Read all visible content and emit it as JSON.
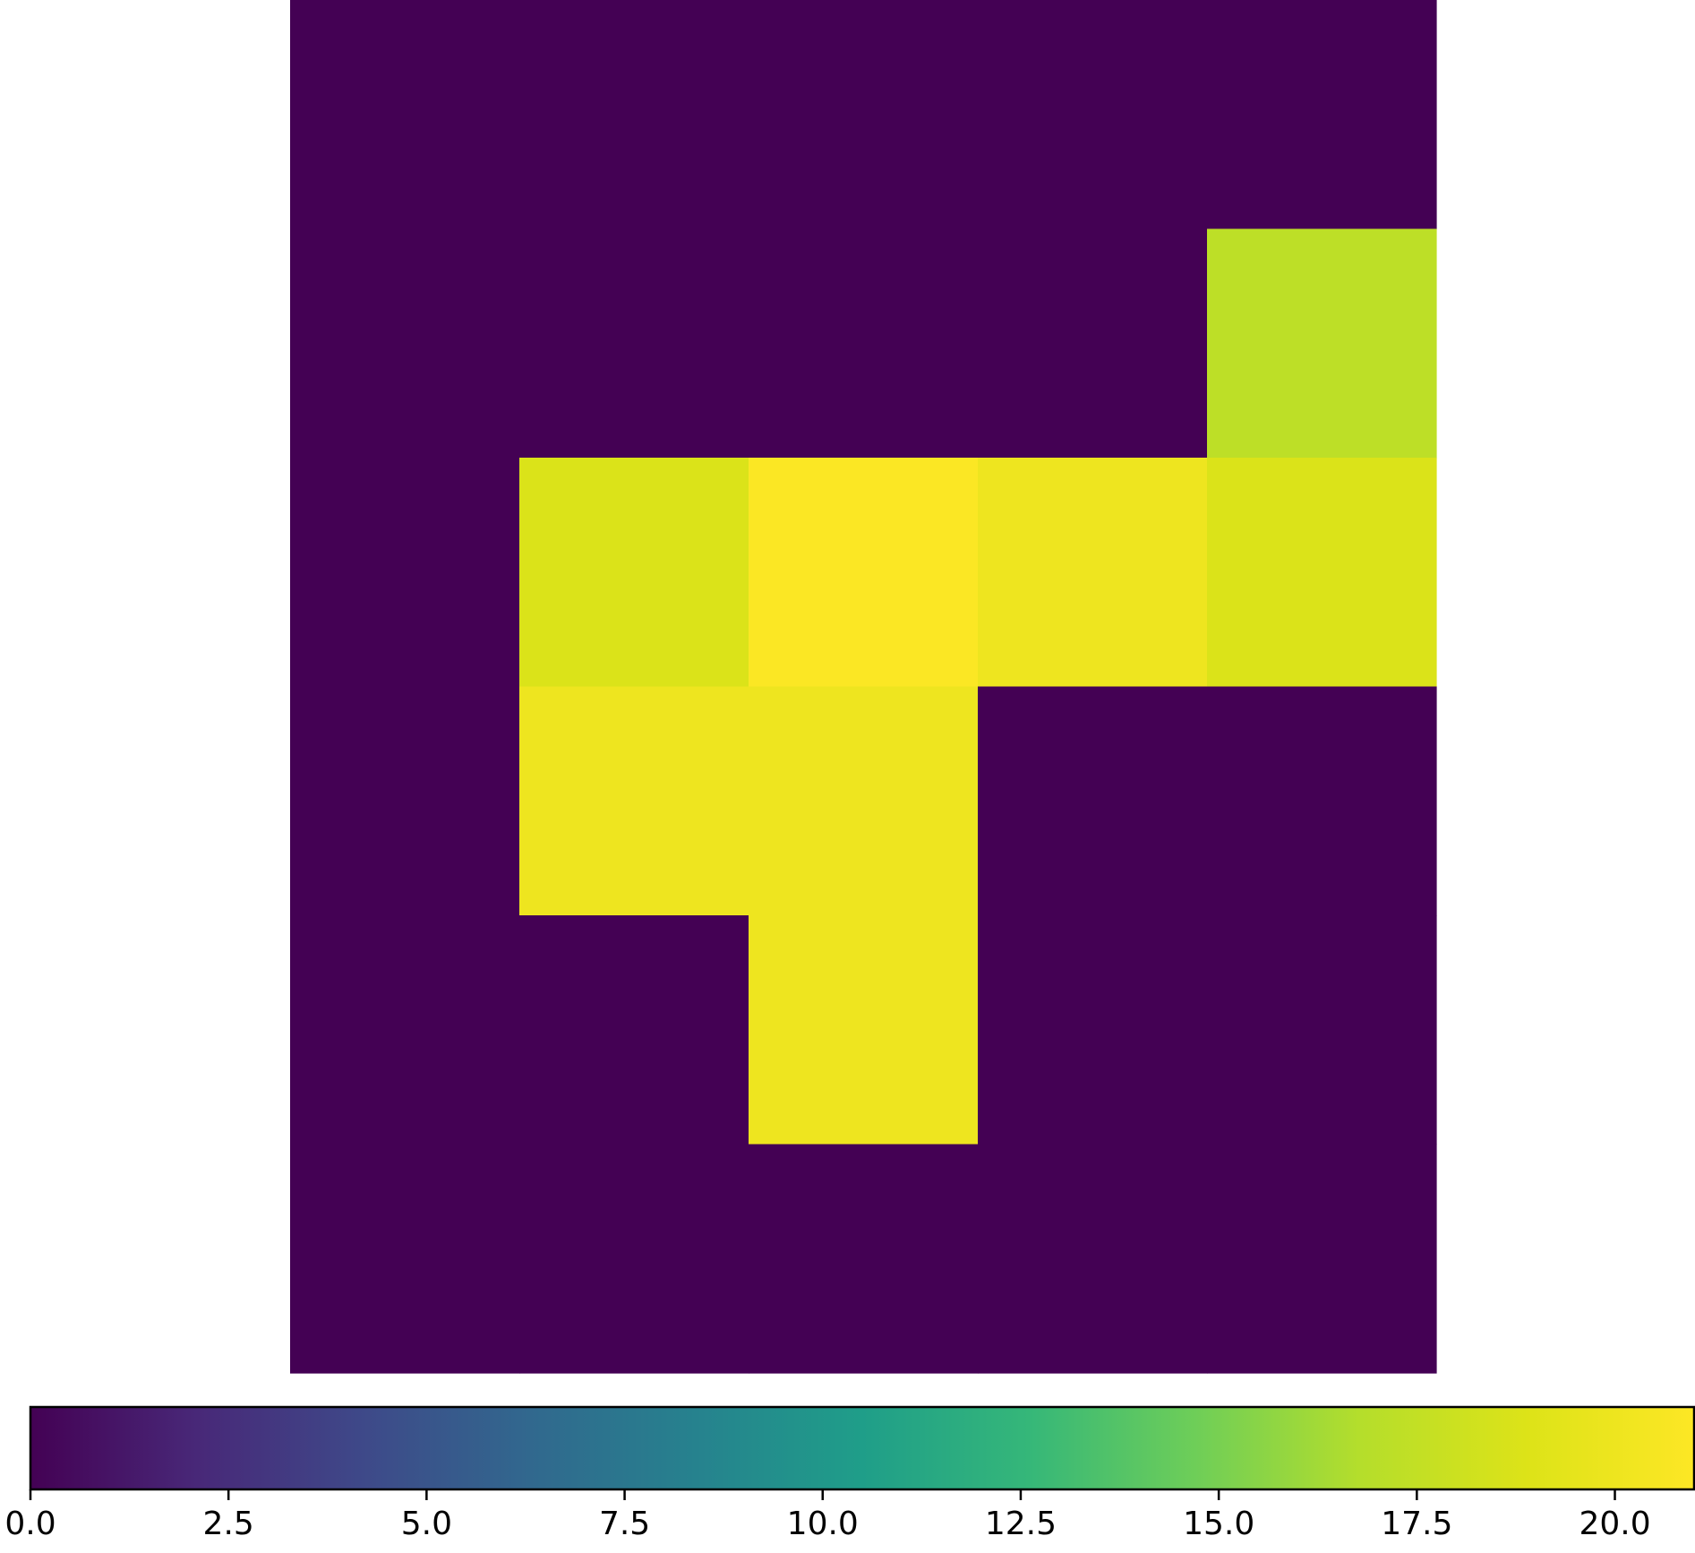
{
  "chart_data": {
    "type": "heatmap",
    "title": "",
    "xlabel": "",
    "ylabel": "",
    "axes_visible": false,
    "rows": 6,
    "cols": 5,
    "values": [
      [
        0,
        0,
        0,
        0,
        0
      ],
      [
        0,
        0,
        0,
        0,
        17.2
      ],
      [
        0,
        18.8,
        20.9,
        20.0,
        18.8
      ],
      [
        0,
        20.0,
        20.0,
        0,
        0
      ],
      [
        0,
        0,
        20.0,
        0,
        0
      ],
      [
        0,
        0,
        0,
        0,
        0
      ]
    ],
    "colormap": "viridis",
    "colorbar": {
      "orientation": "horizontal",
      "placement": "bottom",
      "range": [
        0,
        21
      ],
      "ticks": [
        "0.0",
        "2.5",
        "5.0",
        "7.5",
        "10.0",
        "12.5",
        "15.0",
        "17.5",
        "20.0"
      ],
      "tick_values": [
        0,
        2.5,
        5.0,
        7.5,
        10.0,
        12.5,
        15.0,
        17.5,
        20.0
      ]
    }
  }
}
